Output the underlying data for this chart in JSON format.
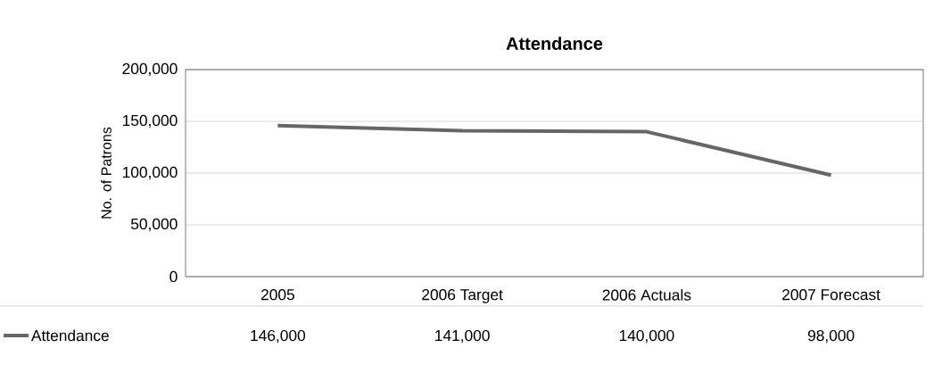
{
  "chart_data": {
    "type": "line",
    "title": "Attendance",
    "ylabel": "No. of Patrons",
    "categories": [
      "2005",
      "2006 Target",
      "2006 Actuals",
      "2007 Forecast"
    ],
    "series": [
      {
        "name": "Attendance",
        "color": "#666666",
        "values": [
          146000,
          141000,
          140000,
          98000
        ],
        "value_labels": [
          "146,000",
          "141,000",
          "140,000",
          "98,000"
        ]
      }
    ],
    "ylim": [
      0,
      200000
    ],
    "yticks": [
      {
        "value": 0,
        "label": "0"
      },
      {
        "value": 50000,
        "label": "50,000"
      },
      {
        "value": 100000,
        "label": "100,000"
      },
      {
        "value": 150000,
        "label": "150,000"
      },
      {
        "value": 200000,
        "label": "200,000"
      }
    ],
    "grid": "y",
    "legend": "bottom left",
    "marker": "none",
    "line_style": "solid"
  }
}
